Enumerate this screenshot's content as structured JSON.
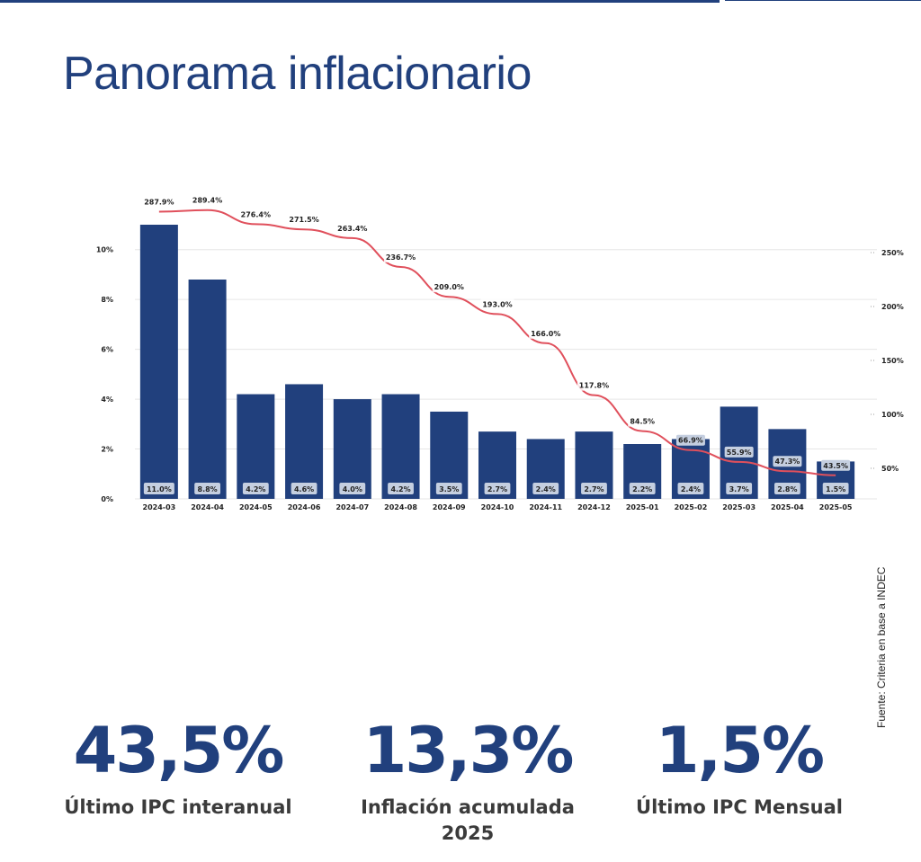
{
  "page": {
    "title": "Panorama inflacionario",
    "source": "Fuente: Criteria en base a INDEC"
  },
  "kpis": [
    {
      "value": "43,5%",
      "label": "Último IPC interanual"
    },
    {
      "value": "13,3%",
      "label": "Inflación acumulada 2025"
    },
    {
      "value": "1,5%",
      "label": "Último IPC Mensual"
    }
  ],
  "colors": {
    "bar": "#21407d",
    "line": "#e0505c",
    "label_bg": "#c5cfe0",
    "title": "#21407d"
  },
  "chart_data": {
    "type": "bar",
    "title": "",
    "xlabel": "",
    "ylabel": "",
    "categories": [
      "2024-03",
      "2024-04",
      "2024-05",
      "2024-06",
      "2024-07",
      "2024-08",
      "2024-09",
      "2024-10",
      "2024-11",
      "2024-12",
      "2025-01",
      "2025-02",
      "2025-03",
      "2025-04",
      "2025-05"
    ],
    "series": [
      {
        "type": "bar",
        "axis": "left",
        "values": [
          11.0,
          8.8,
          4.2,
          4.6,
          4.0,
          4.2,
          3.5,
          2.7,
          2.4,
          2.7,
          2.2,
          2.4,
          3.7,
          2.8,
          1.5
        ],
        "labels": [
          "11.0%",
          "8.8%",
          "4.2%",
          "4.6%",
          "4.0%",
          "4.2%",
          "3.5%",
          "2.7%",
          "2.4%",
          "2.7%",
          "2.2%",
          "2.4%",
          "3.7%",
          "2.8%",
          "1.5%"
        ]
      },
      {
        "type": "line",
        "axis": "right",
        "values": [
          287.9,
          289.4,
          276.4,
          271.5,
          263.4,
          236.7,
          209.0,
          193.0,
          166.0,
          117.8,
          84.5,
          66.9,
          55.9,
          47.3,
          43.5
        ],
        "labels": [
          "287.9%",
          "289.4%",
          "276.4%",
          "271.5%",
          "263.4%",
          "236.7%",
          "209.0%",
          "193.0%",
          "166.0%",
          "117.8%",
          "84.5%",
          "66.9%",
          "55.9%",
          "47.3%",
          "43.5%"
        ]
      }
    ],
    "y_left": {
      "ylim": [
        0,
        11
      ],
      "ticks": [
        0,
        2,
        4,
        6,
        8,
        10
      ],
      "tick_labels": [
        "0%",
        "2%",
        "4%",
        "6%",
        "8%",
        "10%"
      ]
    },
    "y_right": {
      "ylim": [
        30,
        290
      ],
      "ticks": [
        50,
        100,
        150,
        200,
        250
      ],
      "tick_labels": [
        "50%",
        "100%",
        "150%",
        "200%",
        "250%"
      ]
    },
    "grid": true,
    "legend": "none"
  }
}
